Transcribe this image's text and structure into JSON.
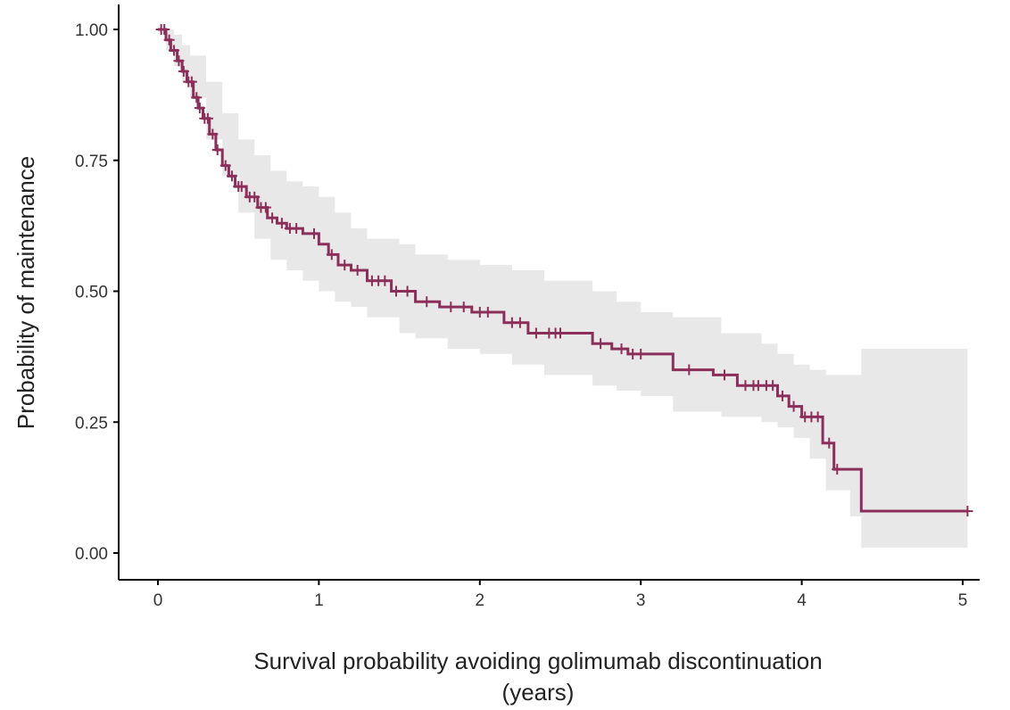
{
  "chart_data": {
    "type": "line",
    "subtype": "kaplan-meier",
    "title": "",
    "xlabel_line1": "Survival probability avoiding golimumab discontinuation",
    "xlabel_line2": "(years)",
    "ylabel": "Probability of maintenance",
    "xlim": [
      0,
      5.05
    ],
    "ylim": [
      0,
      1.0
    ],
    "xticks": [
      0,
      1,
      2,
      3,
      4,
      5
    ],
    "xtick_labels": [
      "0",
      "1",
      "2",
      "3",
      "4",
      "5"
    ],
    "yticks": [
      0,
      0.25,
      0.5,
      0.75,
      1.0
    ],
    "ytick_labels": [
      "0.00",
      "0.25",
      "0.50",
      "0.75",
      "1.00"
    ],
    "grid": false,
    "legend": "none",
    "colors": {
      "curve": "#8b2f5a",
      "ci_band": "#e8e8e8",
      "axis": "#000000"
    },
    "survival_steps": {
      "time": [
        0,
        0.05,
        0.08,
        0.12,
        0.15,
        0.18,
        0.22,
        0.25,
        0.28,
        0.32,
        0.36,
        0.4,
        0.44,
        0.48,
        0.55,
        0.62,
        0.68,
        0.74,
        0.8,
        0.9,
        1.0,
        1.06,
        1.12,
        1.2,
        1.3,
        1.45,
        1.6,
        1.75,
        1.95,
        2.15,
        2.3,
        2.7,
        2.82,
        2.92,
        3.2,
        3.45,
        3.6,
        3.85,
        3.92,
        4.0,
        4.13,
        4.2,
        4.37,
        5.03
      ],
      "survival": [
        1.0,
        0.98,
        0.96,
        0.94,
        0.92,
        0.9,
        0.87,
        0.85,
        0.83,
        0.8,
        0.77,
        0.74,
        0.72,
        0.7,
        0.68,
        0.66,
        0.64,
        0.63,
        0.62,
        0.61,
        0.59,
        0.57,
        0.55,
        0.54,
        0.52,
        0.5,
        0.48,
        0.47,
        0.46,
        0.44,
        0.42,
        0.4,
        0.39,
        0.38,
        0.35,
        0.34,
        0.32,
        0.3,
        0.28,
        0.26,
        0.21,
        0.16,
        0.08,
        0.08
      ]
    },
    "ci_band": {
      "time": [
        0,
        0.05,
        0.1,
        0.15,
        0.2,
        0.3,
        0.4,
        0.5,
        0.6,
        0.7,
        0.8,
        0.9,
        1.0,
        1.1,
        1.2,
        1.3,
        1.5,
        1.6,
        1.8,
        2.0,
        2.2,
        2.4,
        2.7,
        2.85,
        3.0,
        3.2,
        3.5,
        3.75,
        3.85,
        3.95,
        4.05,
        4.15,
        4.3,
        4.37,
        5.03
      ],
      "upper": [
        1.0,
        1.0,
        0.99,
        0.97,
        0.95,
        0.9,
        0.84,
        0.79,
        0.76,
        0.73,
        0.71,
        0.7,
        0.68,
        0.65,
        0.62,
        0.6,
        0.59,
        0.57,
        0.56,
        0.55,
        0.54,
        0.52,
        0.5,
        0.48,
        0.46,
        0.45,
        0.42,
        0.4,
        0.38,
        0.36,
        0.35,
        0.34,
        0.34,
        0.39,
        0.39
      ],
      "lower": [
        1.0,
        0.96,
        0.93,
        0.9,
        0.87,
        0.79,
        0.72,
        0.65,
        0.6,
        0.56,
        0.54,
        0.52,
        0.5,
        0.48,
        0.47,
        0.45,
        0.42,
        0.41,
        0.39,
        0.38,
        0.36,
        0.34,
        0.32,
        0.31,
        0.3,
        0.27,
        0.26,
        0.25,
        0.24,
        0.22,
        0.18,
        0.12,
        0.07,
        0.01,
        0.01
      ]
    },
    "censor_times": [
      0.02,
      0.04,
      0.07,
      0.1,
      0.13,
      0.16,
      0.19,
      0.21,
      0.24,
      0.26,
      0.29,
      0.31,
      0.34,
      0.37,
      0.42,
      0.46,
      0.5,
      0.52,
      0.57,
      0.6,
      0.64,
      0.67,
      0.71,
      0.77,
      0.82,
      0.86,
      0.97,
      1.08,
      1.16,
      1.24,
      1.33,
      1.37,
      1.41,
      1.48,
      1.55,
      1.67,
      1.82,
      1.9,
      2.0,
      2.05,
      2.2,
      2.25,
      2.35,
      2.43,
      2.47,
      2.5,
      2.75,
      2.88,
      2.95,
      3.0,
      3.3,
      3.52,
      3.65,
      3.7,
      3.73,
      3.78,
      3.82,
      3.88,
      3.95,
      4.02,
      4.06,
      4.1,
      4.17,
      4.22,
      5.03
    ]
  }
}
